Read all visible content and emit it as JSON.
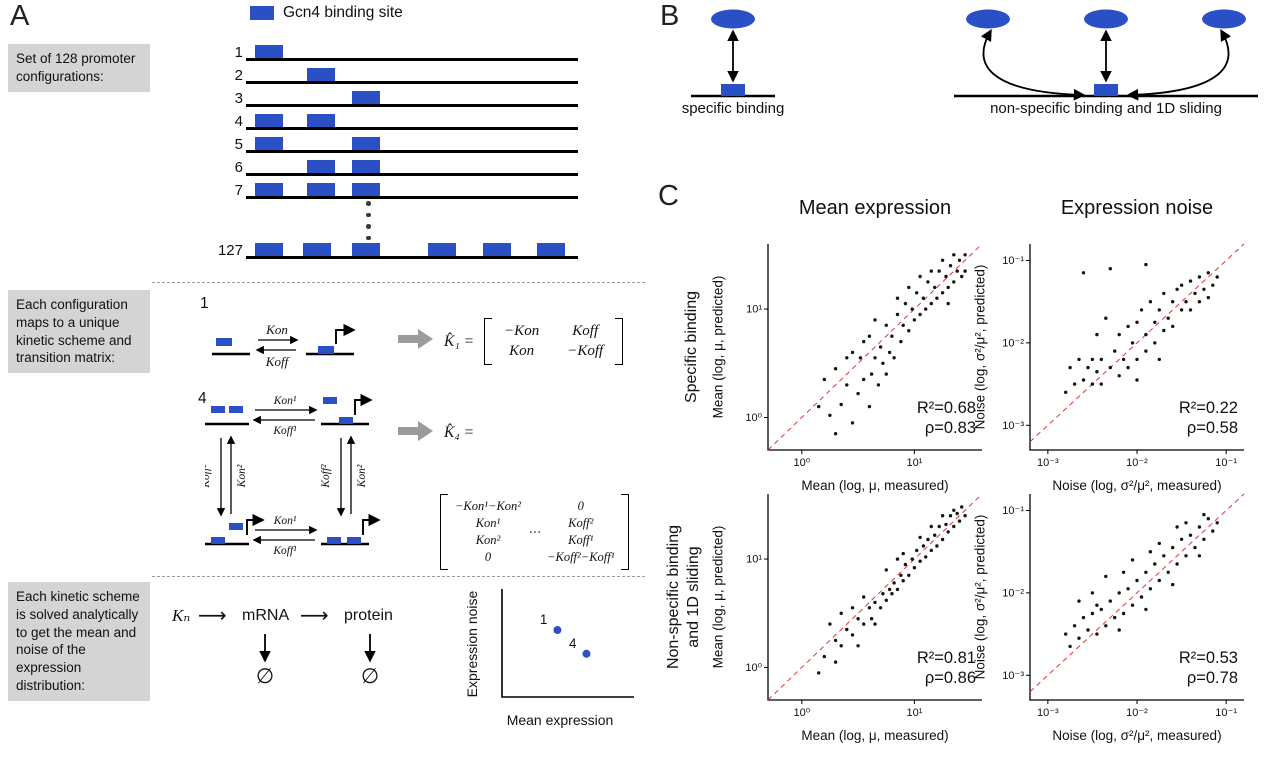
{
  "colors": {
    "site_blue": "#2b4fc4",
    "box_gray": "#d4d4d4",
    "identity_red": "#e03535",
    "dot_black": "#141414"
  },
  "panel_a": {
    "label": "A",
    "legend_label": "Gcn4 binding site",
    "box1": "Set of 128 promoter configurations:",
    "box2": "Each configuration maps to a unique kinetic scheme and transition matrix:",
    "box3": "Each kinetic scheme is solved analytically to get the mean and noise of the expression distribution:",
    "rows": [
      {
        "num": "1",
        "offsets": [
          9
        ]
      },
      {
        "num": "2",
        "offsets": [
          61
        ]
      },
      {
        "num": "3",
        "offsets": [
          106
        ]
      },
      {
        "num": "4",
        "offsets": [
          9,
          61
        ]
      },
      {
        "num": "5",
        "offsets": [
          9,
          106
        ]
      },
      {
        "num": "6",
        "offsets": [
          61,
          106
        ]
      },
      {
        "num": "7",
        "offsets": [
          9,
          61,
          106
        ]
      },
      {
        "num": "127",
        "offsets": [
          9,
          57,
          106,
          182,
          237,
          291
        ]
      }
    ],
    "scheme1": {
      "num": "1",
      "kon": "Kon",
      "koff": "Koff",
      "lhs": "K̂₁ =",
      "m11": "−Kon",
      "m12": "Koff",
      "m21": "Kon",
      "m22": "−Koff"
    },
    "scheme4": {
      "num": "4",
      "kon1": "Kon¹",
      "koff1": "Koff¹",
      "kon2": "Kon²",
      "koff2": "Koff²",
      "lhs": "K̂₄ =",
      "dots": "⋯",
      "r1c1": "−Kon¹−Kon²",
      "r1c2": "0",
      "r2c1": "Kon¹",
      "r2c2": "Koff²",
      "r3c1": "Kon²",
      "r3c2": "Koff¹",
      "r4c1": "0",
      "r4c2": "−Koff²−Koff¹"
    },
    "solve": {
      "kn": "Kₙ",
      "arrow": "⟶",
      "mrna": "mRNA",
      "protein": "protein",
      "empty1": "∅",
      "empty2": "∅"
    },
    "miniplot": {
      "ylabel": "Expression noise",
      "xlabel": "Mean expression",
      "points": [
        {
          "label": "1",
          "fx": 0.42,
          "fy": 0.62
        },
        {
          "label": "4",
          "fx": 0.64,
          "fy": 0.4
        }
      ]
    }
  },
  "panel_b": {
    "label": "B",
    "left_caption": "specific binding",
    "right_caption": "non-specific binding and 1D sliding"
  },
  "panel_c": {
    "label": "C",
    "col_titles": [
      "Mean expression",
      "Expression noise"
    ],
    "row_title_1": "Specific binding",
    "row_title_2_line1": "Non-specific binding",
    "row_title_2_line2": "and 1D sliding"
  },
  "chart_data": [
    {
      "type": "scatter",
      "row_title": "Specific binding",
      "col_title": "Mean expression",
      "xlabel": "Mean (log, μ, measured)",
      "ylabel": "Mean (log, μ, predicted)",
      "r2": "R²=0.68",
      "rho": "ρ=0.83",
      "r2_value": 0.68,
      "rho_value": 0.83,
      "xlim": [
        -0.3,
        1.6
      ],
      "ylim": [
        -0.3,
        1.6
      ],
      "xticks": [
        {
          "v": 0,
          "label": "10⁰"
        },
        {
          "v": 1,
          "label": "10¹"
        }
      ],
      "yticks": [
        {
          "v": 0,
          "label": "10⁰"
        },
        {
          "v": 1,
          "label": "10¹"
        }
      ],
      "identity_line": true,
      "points": [
        [
          0.25,
          0.02
        ],
        [
          0.3,
          0.45
        ],
        [
          0.35,
          0.12
        ],
        [
          0.4,
          0.3
        ],
        [
          0.45,
          0.6
        ],
        [
          0.5,
          0.22
        ],
        [
          0.52,
          0.55
        ],
        [
          0.55,
          0.35
        ],
        [
          0.6,
          0.75
        ],
        [
          0.62,
          0.4
        ],
        [
          0.65,
          0.55
        ],
        [
          0.68,
          0.3
        ],
        [
          0.7,
          0.65
        ],
        [
          0.72,
          0.5
        ],
        [
          0.75,
          0.85
        ],
        [
          0.78,
          0.6
        ],
        [
          0.8,
          0.75
        ],
        [
          0.82,
          0.55
        ],
        [
          0.85,
          0.95
        ],
        [
          0.88,
          0.7
        ],
        [
          0.9,
          0.85
        ],
        [
          0.92,
          1.05
        ],
        [
          0.95,
          0.8
        ],
        [
          0.98,
          1.0
        ],
        [
          1.0,
          0.9
        ],
        [
          1.02,
          1.15
        ],
        [
          1.05,
          0.95
        ],
        [
          1.08,
          1.1
        ],
        [
          1.1,
          1.0
        ],
        [
          1.12,
          1.25
        ],
        [
          1.15,
          1.05
        ],
        [
          1.18,
          1.2
        ],
        [
          1.2,
          1.1
        ],
        [
          1.22,
          1.35
        ],
        [
          1.25,
          1.15
        ],
        [
          1.28,
          1.3
        ],
        [
          1.3,
          1.2
        ],
        [
          1.32,
          1.4
        ],
        [
          1.35,
          1.25
        ],
        [
          1.38,
          1.35
        ],
        [
          1.4,
          1.45
        ],
        [
          1.42,
          1.3
        ],
        [
          1.45,
          1.5
        ],
        [
          1.35,
          1.5
        ],
        [
          1.25,
          1.45
        ],
        [
          1.15,
          1.35
        ],
        [
          1.05,
          1.3
        ],
        [
          0.95,
          1.2
        ],
        [
          0.85,
          1.1
        ],
        [
          0.3,
          -0.15
        ],
        [
          0.45,
          -0.05
        ],
        [
          0.6,
          0.1
        ],
        [
          0.2,
          0.35
        ],
        [
          0.15,
          0.1
        ],
        [
          0.55,
          0.7
        ],
        [
          0.75,
          0.4
        ],
        [
          1.3,
          1.05
        ],
        [
          1.45,
          1.35
        ],
        [
          0.4,
          0.55
        ],
        [
          0.65,
          0.9
        ]
      ]
    },
    {
      "type": "scatter",
      "row_title": "Specific binding",
      "col_title": "Expression noise",
      "xlabel": "Noise (log, σ²/μ², measured)",
      "ylabel": "Noise (log, σ²/μ², predicted)",
      "r2": "R²=0.22",
      "rho": "ρ=0.58",
      "r2_value": 0.22,
      "rho_value": 0.58,
      "xlim": [
        -3.2,
        -0.8
      ],
      "ylim": [
        -3.3,
        -0.8
      ],
      "xticks": [
        {
          "v": -3,
          "label": "10⁻³"
        },
        {
          "v": -2,
          "label": "10⁻²"
        },
        {
          "v": -1,
          "label": "10⁻¹"
        }
      ],
      "yticks": [
        {
          "v": -3,
          "label": "10⁻³"
        },
        {
          "v": -2,
          "label": "10⁻²"
        },
        {
          "v": -1,
          "label": "10⁻¹"
        }
      ],
      "identity_line": true,
      "points": [
        [
          -2.75,
          -2.3
        ],
        [
          -2.7,
          -2.5
        ],
        [
          -2.65,
          -2.2
        ],
        [
          -2.6,
          -2.45
        ],
        [
          -2.55,
          -2.3
        ],
        [
          -2.5,
          -2.2
        ],
        [
          -2.5,
          -2.5
        ],
        [
          -2.45,
          -2.35
        ],
        [
          -2.4,
          -2.2
        ],
        [
          -2.4,
          -2.5
        ],
        [
          -2.35,
          -1.7
        ],
        [
          -2.3,
          -2.3
        ],
        [
          -2.25,
          -2.1
        ],
        [
          -2.2,
          -2.4
        ],
        [
          -2.2,
          -1.9
        ],
        [
          -2.15,
          -2.2
        ],
        [
          -2.1,
          -1.8
        ],
        [
          -2.1,
          -2.3
        ],
        [
          -2.05,
          -2.0
        ],
        [
          -2.0,
          -1.75
        ],
        [
          -2.0,
          -2.2
        ],
        [
          -1.95,
          -1.6
        ],
        [
          -1.9,
          -1.9
        ],
        [
          -1.9,
          -2.1
        ],
        [
          -1.85,
          -1.5
        ],
        [
          -1.8,
          -1.75
        ],
        [
          -1.8,
          -2.0
        ],
        [
          -1.75,
          -1.6
        ],
        [
          -1.7,
          -1.85
        ],
        [
          -1.7,
          -1.4
        ],
        [
          -1.65,
          -1.7
        ],
        [
          -1.6,
          -1.5
        ],
        [
          -1.6,
          -1.8
        ],
        [
          -1.55,
          -1.35
        ],
        [
          -1.5,
          -1.6
        ],
        [
          -1.5,
          -1.3
        ],
        [
          -1.45,
          -1.5
        ],
        [
          -1.4,
          -1.25
        ],
        [
          -1.4,
          -1.6
        ],
        [
          -1.35,
          -1.4
        ],
        [
          -1.3,
          -1.2
        ],
        [
          -1.3,
          -1.5
        ],
        [
          -1.25,
          -1.35
        ],
        [
          -1.2,
          -1.15
        ],
        [
          -1.15,
          -1.3
        ],
        [
          -2.6,
          -1.15
        ],
        [
          -2.3,
          -1.1
        ],
        [
          -1.9,
          -1.05
        ],
        [
          -2.45,
          -1.9
        ],
        [
          -2.0,
          -2.45
        ],
        [
          -1.75,
          -2.2
        ],
        [
          -2.8,
          -2.6
        ],
        [
          -1.1,
          -1.2
        ],
        [
          -1.2,
          -1.45
        ]
      ]
    },
    {
      "type": "scatter",
      "row_title": "Non-specific binding and 1D sliding",
      "col_title": "Mean expression",
      "xlabel": "Mean (log, μ, measured)",
      "ylabel": "Mean (log, μ, predicted)",
      "r2": "R²=0.81",
      "rho": "ρ=0.86",
      "r2_value": 0.81,
      "rho_value": 0.86,
      "xlim": [
        -0.3,
        1.6
      ],
      "ylim": [
        -0.3,
        1.6
      ],
      "xticks": [
        {
          "v": 0,
          "label": "10⁰"
        },
        {
          "v": 1,
          "label": "10¹"
        }
      ],
      "yticks": [
        {
          "v": 0,
          "label": "10⁰"
        },
        {
          "v": 1,
          "label": "10¹"
        }
      ],
      "identity_line": true,
      "points": [
        [
          0.2,
          0.1
        ],
        [
          0.3,
          0.25
        ],
        [
          0.35,
          0.2
        ],
        [
          0.4,
          0.35
        ],
        [
          0.45,
          0.3
        ],
        [
          0.5,
          0.45
        ],
        [
          0.55,
          0.4
        ],
        [
          0.6,
          0.55
        ],
        [
          0.62,
          0.45
        ],
        [
          0.65,
          0.6
        ],
        [
          0.7,
          0.55
        ],
        [
          0.72,
          0.68
        ],
        [
          0.75,
          0.62
        ],
        [
          0.78,
          0.72
        ],
        [
          0.8,
          0.68
        ],
        [
          0.82,
          0.78
        ],
        [
          0.85,
          0.72
        ],
        [
          0.88,
          0.85
        ],
        [
          0.9,
          0.8
        ],
        [
          0.92,
          0.95
        ],
        [
          0.95,
          0.85
        ],
        [
          0.98,
          1.0
        ],
        [
          1.0,
          0.92
        ],
        [
          1.02,
          1.08
        ],
        [
          1.05,
          0.98
        ],
        [
          1.08,
          1.12
        ],
        [
          1.1,
          1.02
        ],
        [
          1.12,
          1.18
        ],
        [
          1.15,
          1.08
        ],
        [
          1.18,
          1.22
        ],
        [
          1.2,
          1.12
        ],
        [
          1.22,
          1.3
        ],
        [
          1.25,
          1.18
        ],
        [
          1.28,
          1.32
        ],
        [
          1.3,
          1.25
        ],
        [
          1.32,
          1.4
        ],
        [
          1.35,
          1.3
        ],
        [
          1.38,
          1.42
        ],
        [
          1.4,
          1.35
        ],
        [
          1.42,
          1.48
        ],
        [
          1.45,
          1.4
        ],
        [
          0.25,
          0.4
        ],
        [
          0.5,
          0.2
        ],
        [
          0.65,
          0.4
        ],
        [
          0.85,
          1.0
        ],
        [
          1.05,
          1.2
        ],
        [
          1.25,
          1.4
        ],
        [
          0.15,
          -0.05
        ],
        [
          0.35,
          0.5
        ],
        [
          0.9,
          1.05
        ],
        [
          1.35,
          1.45
        ],
        [
          0.55,
          0.65
        ],
        [
          0.75,
          0.9
        ],
        [
          1.15,
          1.3
        ],
        [
          0.45,
          0.55
        ],
        [
          0.3,
          0.05
        ]
      ]
    },
    {
      "type": "scatter",
      "row_title": "Non-specific binding and 1D sliding",
      "col_title": "Expression noise",
      "xlabel": "Noise (log, σ²/μ², measured)",
      "ylabel": "Noise (log, σ²/μ², predicted)",
      "r2": "R²=0.53",
      "rho": "ρ=0.78",
      "r2_value": 0.53,
      "rho_value": 0.78,
      "xlim": [
        -3.2,
        -0.8
      ],
      "ylim": [
        -3.3,
        -0.8
      ],
      "xticks": [
        {
          "v": -3,
          "label": "10⁻³"
        },
        {
          "v": -2,
          "label": "10⁻²"
        },
        {
          "v": -1,
          "label": "10⁻¹"
        }
      ],
      "yticks": [
        {
          "v": -3,
          "label": "10⁻³"
        },
        {
          "v": -2,
          "label": "10⁻²"
        },
        {
          "v": -1,
          "label": "10⁻¹"
        }
      ],
      "identity_line": true,
      "points": [
        [
          -2.7,
          -2.4
        ],
        [
          -2.65,
          -2.55
        ],
        [
          -2.6,
          -2.3
        ],
        [
          -2.55,
          -2.45
        ],
        [
          -2.5,
          -2.25
        ],
        [
          -2.45,
          -2.5
        ],
        [
          -2.4,
          -2.2
        ],
        [
          -2.35,
          -2.4
        ],
        [
          -2.3,
          -2.1
        ],
        [
          -2.25,
          -2.3
        ],
        [
          -2.2,
          -2.0
        ],
        [
          -2.15,
          -2.25
        ],
        [
          -2.1,
          -1.95
        ],
        [
          -2.05,
          -2.15
        ],
        [
          -2.0,
          -1.85
        ],
        [
          -1.95,
          -2.05
        ],
        [
          -1.9,
          -1.75
        ],
        [
          -1.85,
          -1.95
        ],
        [
          -1.8,
          -1.65
        ],
        [
          -1.75,
          -1.85
        ],
        [
          -1.7,
          -1.55
        ],
        [
          -1.65,
          -1.75
        ],
        [
          -1.6,
          -1.45
        ],
        [
          -1.55,
          -1.65
        ],
        [
          -1.5,
          -1.35
        ],
        [
          -1.45,
          -1.55
        ],
        [
          -1.4,
          -1.3
        ],
        [
          -1.35,
          -1.45
        ],
        [
          -1.3,
          -1.2
        ],
        [
          -1.25,
          -1.35
        ],
        [
          -1.2,
          -1.1
        ],
        [
          -1.15,
          -1.25
        ],
        [
          -2.5,
          -2.0
        ],
        [
          -2.2,
          -2.45
        ],
        [
          -1.9,
          -2.2
        ],
        [
          -1.6,
          -1.9
        ],
        [
          -2.35,
          -1.8
        ],
        [
          -2.05,
          -1.6
        ],
        [
          -1.75,
          -1.4
        ],
        [
          -1.45,
          -1.15
        ],
        [
          -2.65,
          -2.1
        ],
        [
          -2.8,
          -2.5
        ],
        [
          -1.3,
          -1.55
        ],
        [
          -1.1,
          -1.15
        ],
        [
          -2.45,
          -2.15
        ],
        [
          -2.15,
          -1.75
        ],
        [
          -1.85,
          -1.5
        ],
        [
          -1.55,
          -1.2
        ],
        [
          -2.75,
          -2.65
        ],
        [
          -1.25,
          -1.05
        ]
      ]
    }
  ]
}
